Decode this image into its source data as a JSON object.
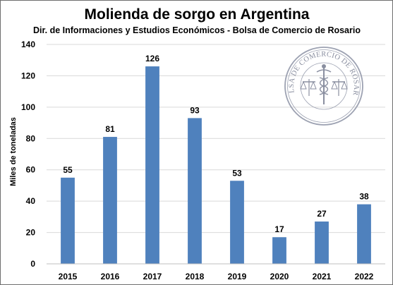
{
  "chart_data": {
    "type": "bar",
    "title": "Molienda de sorgo en Argentina",
    "subtitle": "Dir. de Informaciones y Estudios Económicos - Bolsa de Comercio de Rosario",
    "ylabel": "Miles de toneladas",
    "xlabel": "",
    "categories": [
      "2015",
      "2016",
      "2017",
      "2018",
      "2019",
      "2020",
      "2021",
      "2022"
    ],
    "values": [
      55,
      81,
      126,
      93,
      53,
      17,
      27,
      38
    ],
    "data_labels": [
      "55",
      "81",
      "126",
      "93",
      "53",
      "17",
      "27",
      "38"
    ],
    "ylim": [
      0,
      140
    ],
    "yticks": [
      0,
      20,
      40,
      60,
      80,
      100,
      120,
      140
    ],
    "grid": true,
    "legend": "none",
    "bar_color": "#4f81bd"
  },
  "watermark": {
    "text": "BOLSA DE COMERCIO DE ROSARIO",
    "color": "#8a8fa0"
  }
}
